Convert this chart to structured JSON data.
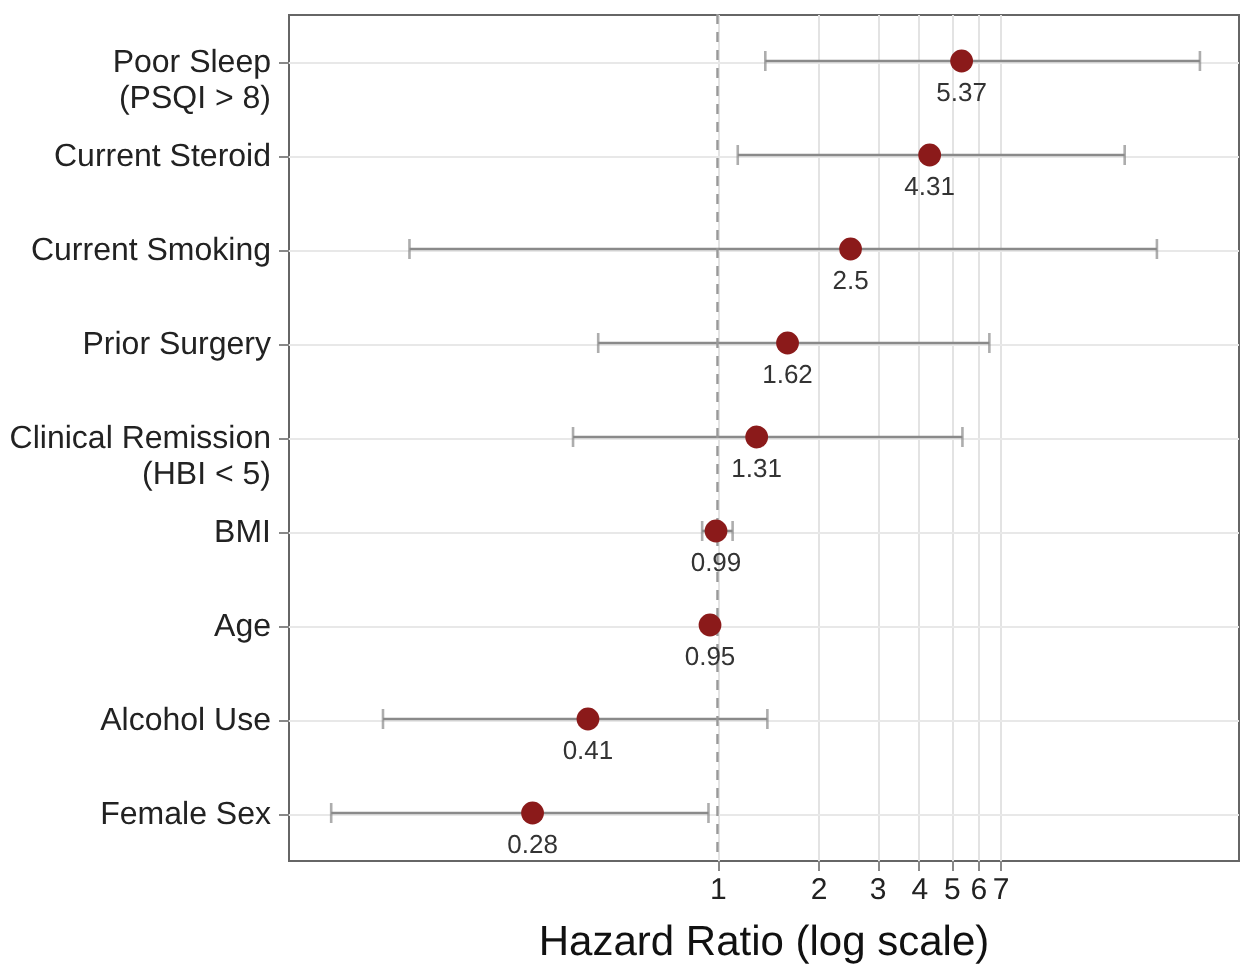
{
  "chart_data": {
    "type": "scatter",
    "orientation": "horizontal",
    "xlabel": "Hazard Ratio (log scale)",
    "categories": [
      "Poor Sleep\n(PSQI > 8)",
      "Current Steroid",
      "Current Smoking",
      "Prior Surgery",
      "Clinical Remission\n(HBI < 5)",
      "BMI",
      "Age",
      "Alcohol Use",
      "Female Sex"
    ],
    "values": [
      5.37,
      4.31,
      2.5,
      1.62,
      1.31,
      0.99,
      0.95,
      0.41,
      0.28
    ],
    "errors": [
      [
        1.39,
        27.7
      ],
      [
        1.15,
        16.5
      ],
      [
        0.12,
        20.6
      ],
      [
        0.44,
        6.5
      ],
      [
        0.37,
        5.4
      ],
      [
        0.9,
        1.11
      ],
      null,
      [
        0.1,
        1.41
      ],
      [
        0.07,
        0.94
      ]
    ],
    "color": "#8b1a1a",
    "data_labels": true,
    "marker": "circle",
    "log": "x",
    "grid": true,
    "xlim": [
      0.052,
      36
    ],
    "xticks": [
      1,
      2,
      3,
      4,
      5,
      6,
      7
    ],
    "ref_lines": [
      {
        "axis": "x",
        "value": 1,
        "line_style": "dashed",
        "color": "#999999"
      }
    ]
  }
}
